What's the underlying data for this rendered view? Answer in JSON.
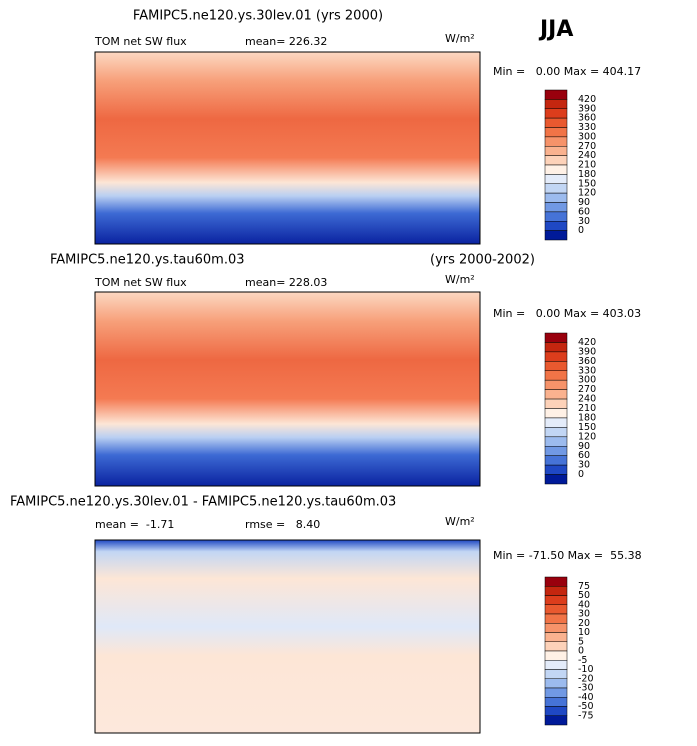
{
  "header": {
    "season": "JJA"
  },
  "panels": [
    {
      "title": "FAMIPC5.ne120.ys.30lev.01 (yrs 2000)",
      "field": "TOM net SW flux",
      "stat1": "mean= 226.32",
      "units": "W/m²",
      "range": "Min =   0.00 Max = 404.17",
      "colorbar": {
        "labels": [
          "420",
          "390",
          "360",
          "330",
          "300",
          "270",
          "240",
          "210",
          "180",
          "150",
          "120",
          "90",
          "60",
          "30",
          "0"
        ],
        "colors": [
          "#99000d",
          "#c4260f",
          "#dc3d1c",
          "#e9592f",
          "#f17447",
          "#f6936a",
          "#fab28f",
          "#fdd2b9",
          "#fff1e6",
          "#e4ecfa",
          "#c2d6f4",
          "#9cbbee",
          "#7199e4",
          "#4673d7",
          "#1f48c4",
          "#001a99"
        ]
      }
    },
    {
      "title": "FAMIPC5.ne120.ys.tau60m.03",
      "years": "(yrs 2000-2002)",
      "field": "TOM net SW flux",
      "stat1": "mean= 228.03",
      "units": "W/m²",
      "range": "Min =   0.00 Max = 403.03",
      "colorbar": {
        "labels": [
          "420",
          "390",
          "360",
          "330",
          "300",
          "270",
          "240",
          "210",
          "180",
          "150",
          "120",
          "90",
          "60",
          "30",
          "0"
        ],
        "colors": [
          "#99000d",
          "#c4260f",
          "#dc3d1c",
          "#e9592f",
          "#f17447",
          "#f6936a",
          "#fab28f",
          "#fdd2b9",
          "#fff1e6",
          "#e4ecfa",
          "#c2d6f4",
          "#9cbbee",
          "#7199e4",
          "#4673d7",
          "#1f48c4",
          "#001a99"
        ]
      }
    },
    {
      "title": "FAMIPC5.ne120.ys.30lev.01 - FAMIPC5.ne120.ys.tau60m.03",
      "stat1": "mean =  -1.71",
      "stat2": "rmse =   8.40",
      "units": "W/m²",
      "range": "Min = -71.50 Max =  55.38",
      "colorbar": {
        "labels": [
          "75",
          "50",
          "40",
          "30",
          "20",
          "10",
          "5",
          "0",
          "-5",
          "-10",
          "-20",
          "-30",
          "-40",
          "-50",
          "-75"
        ],
        "colors": [
          "#99000d",
          "#c4260f",
          "#dc3d1c",
          "#e9592f",
          "#f17447",
          "#f6936a",
          "#fab28f",
          "#fdd2b9",
          "#fff1e6",
          "#e4ecfa",
          "#c2d6f4",
          "#9cbbee",
          "#7199e4",
          "#4673d7",
          "#1f48c4",
          "#001a99"
        ]
      }
    }
  ]
}
